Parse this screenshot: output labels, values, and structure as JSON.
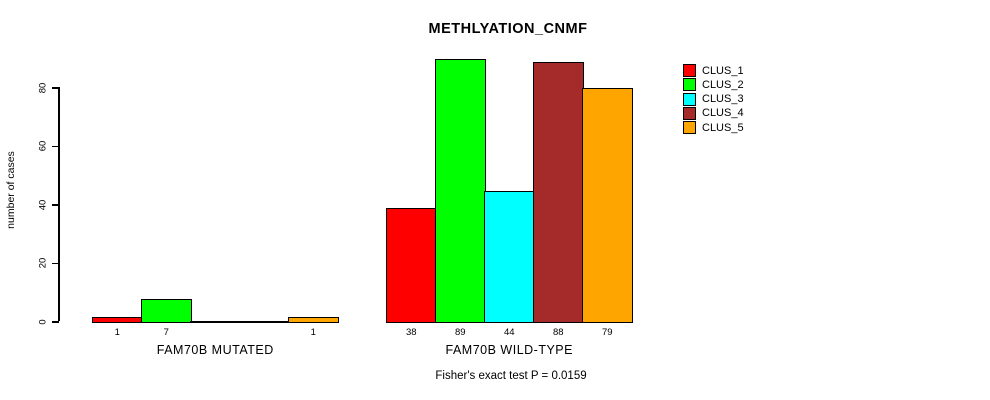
{
  "title": "METHLYATION_CNMF",
  "y_axis": {
    "label": "number of cases",
    "ticks": [
      0,
      20,
      40,
      60,
      80
    ]
  },
  "footer": "Fisher's exact test P = 0.0159",
  "legend": {
    "entries": [
      {
        "label": "CLUS_1",
        "color": "#FF0000"
      },
      {
        "label": "CLUS_2",
        "color": "#00FF00"
      },
      {
        "label": "CLUS_3",
        "color": "#00FFFF"
      },
      {
        "label": "CLUS_4",
        "color": "#A52A2A"
      },
      {
        "label": "CLUS_5",
        "color": "#FFA500"
      }
    ]
  },
  "chart_data": {
    "type": "bar",
    "title": "METHLYATION_CNMF",
    "xlabel": "",
    "ylabel": "number of cases",
    "ylim": [
      0,
      89
    ],
    "yticks": [
      0,
      20,
      40,
      60,
      80
    ],
    "grid": false,
    "legend_position": "right",
    "categories": [
      "FAM70B MUTATED",
      "FAM70B WILD-TYPE"
    ],
    "series": [
      {
        "name": "CLUS_1",
        "color": "#FF0000",
        "values": [
          1,
          38
        ]
      },
      {
        "name": "CLUS_2",
        "color": "#00FF00",
        "values": [
          7,
          89
        ]
      },
      {
        "name": "CLUS_3",
        "color": "#00FFFF",
        "values": [
          0,
          44
        ]
      },
      {
        "name": "CLUS_4",
        "color": "#A52A2A",
        "values": [
          0,
          88
        ]
      },
      {
        "name": "CLUS_5",
        "color": "#FFA500",
        "values": [
          1,
          79
        ]
      }
    ],
    "bar_value_labels_shown_for_nonzero_only": true,
    "annotation": "Fisher's exact test P = 0.0159"
  }
}
